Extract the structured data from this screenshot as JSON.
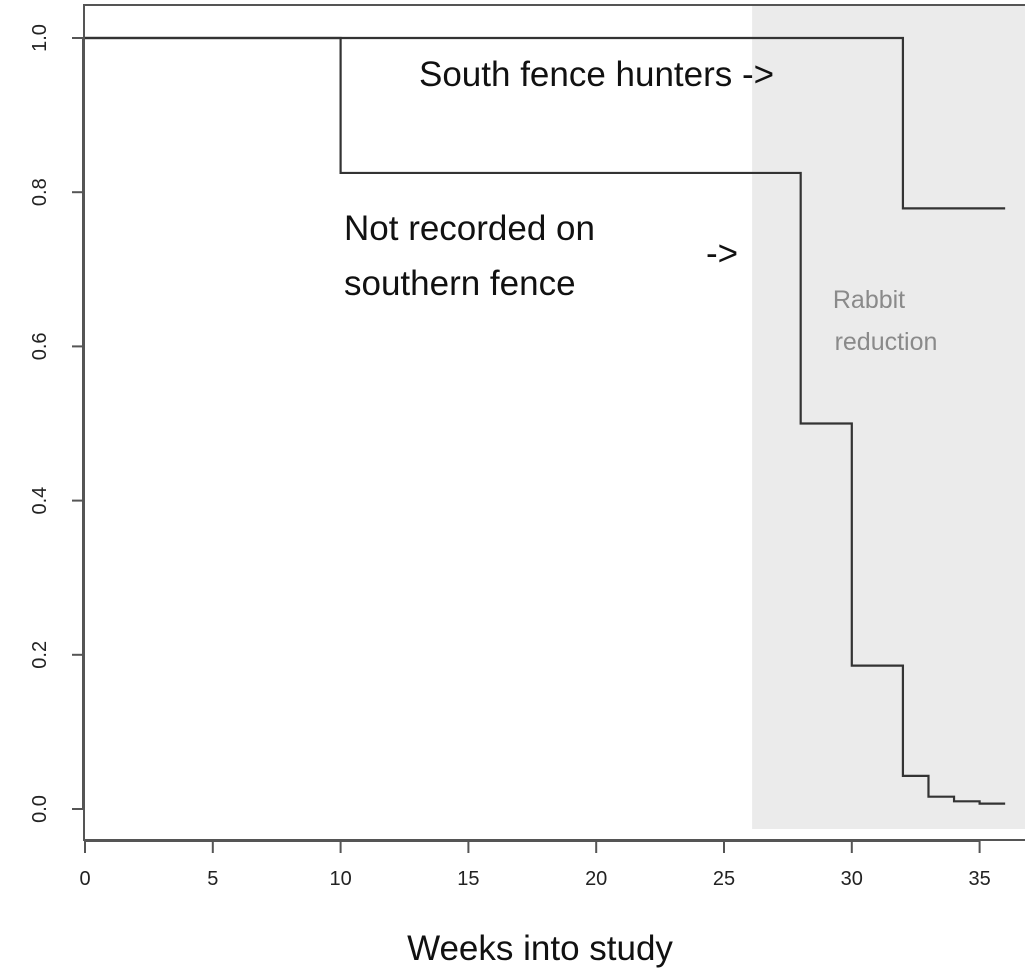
{
  "chart_data": {
    "type": "line",
    "title": "",
    "xlabel": "Weeks into study",
    "ylabel": "",
    "xlim": [
      0,
      36.8
    ],
    "ylim": [
      0,
      1.0
    ],
    "x_ticks": [
      "0",
      "5",
      "10",
      "15",
      "20",
      "25",
      "30",
      "35"
    ],
    "x_tick_values": [
      0,
      5,
      10,
      15,
      20,
      25,
      30,
      35
    ],
    "y_ticks": [
      "0.0",
      "0.2",
      "0.4",
      "0.6",
      "0.8",
      "1.0"
    ],
    "y_tick_values": [
      0,
      0.2,
      0.4,
      0.6,
      0.8,
      1.0
    ],
    "grid": false,
    "shaded_region": {
      "x_start": 26.1,
      "x_end": 36.8,
      "label_lines": [
        "Rabbit",
        "reduction"
      ],
      "color": "#ebebeb"
    },
    "series": [
      {
        "step": true,
        "x": [
          0,
          32,
          36
        ],
        "y": [
          1.0,
          0.779,
          0.779
        ]
      },
      {
        "step": true,
        "x": [
          0,
          10,
          28,
          30,
          32,
          33,
          34,
          35,
          36
        ],
        "y": [
          1.0,
          0.825,
          0.5,
          0.186,
          0.043,
          0.016,
          0.01,
          0.007,
          0.007
        ]
      }
    ],
    "annotations": [
      {
        "text": "South fence hunters ->"
      },
      {
        "text_lines": [
          "Not recorded on",
          "southern fence"
        ]
      },
      {
        "text": "->"
      }
    ],
    "line_color": "#333333"
  }
}
